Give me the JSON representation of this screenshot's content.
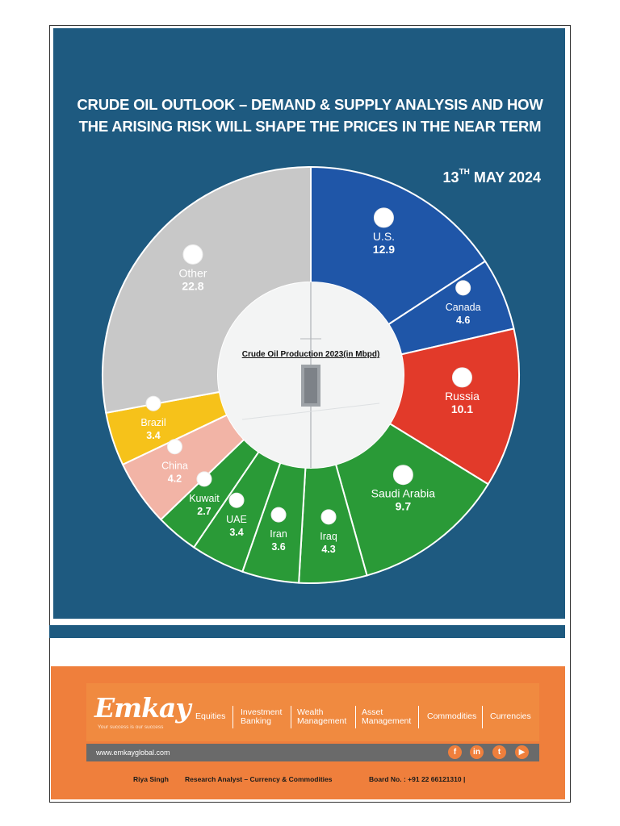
{
  "cover": {
    "title": "CRUDE OIL OUTLOOK – DEMAND & SUPPLY ANALYSIS AND HOW THE ARISING RISK WILL SHAPE THE PRICES IN THE NEAR TERM",
    "date_day": "13",
    "date_suffix": "TH",
    "date_rest": " MAY 2024"
  },
  "chart_data": {
    "type": "pie",
    "variant": "donut",
    "title": "Crude Oil Production 2023(in Mbpd)",
    "slices": [
      {
        "label": "U.S.",
        "value": 12.9,
        "color": "#1f56a8",
        "flag": "us-flag-icon"
      },
      {
        "label": "Canada",
        "value": 4.6,
        "color": "#1f56a8",
        "flag": "canada-flag-icon"
      },
      {
        "label": "Russia",
        "value": 10.1,
        "color": "#e23a2a",
        "flag": "russia-flag-icon"
      },
      {
        "label": "Saudi Arabia",
        "value": 9.7,
        "color": "#2a9a37",
        "flag": "saudi-flag-icon"
      },
      {
        "label": "Iraq",
        "value": 4.3,
        "color": "#2a9a37",
        "flag": "iraq-flag-icon"
      },
      {
        "label": "Iran",
        "value": 3.6,
        "color": "#2a9a37",
        "flag": "iran-flag-icon"
      },
      {
        "label": "UAE",
        "value": 3.4,
        "color": "#2a9a37",
        "flag": "uae-flag-icon"
      },
      {
        "label": "Kuwait",
        "value": 2.7,
        "color": "#2a9a37",
        "flag": "kuwait-flag-icon"
      },
      {
        "label": "China",
        "value": 4.2,
        "color": "#f2b4a6",
        "flag": "china-flag-icon"
      },
      {
        "label": "Brazil",
        "value": 3.4,
        "color": "#f6c21a",
        "flag": "brazil-flag-icon"
      },
      {
        "label": "Other",
        "value": 22.8,
        "color": "#c8c8c8",
        "flag": "globe-icon"
      }
    ]
  },
  "footer": {
    "logo": "Emkay",
    "tagline": "Your success is our success",
    "services": [
      "Equities",
      "Investment Banking",
      "Wealth Management",
      "Asset Management",
      "Commodities",
      "Currencies"
    ],
    "website": "www.emkayglobal.com",
    "social": [
      "facebook-icon",
      "linkedin-icon",
      "twitter-icon",
      "youtube-icon"
    ],
    "analyst_name": "Riya Singh",
    "analyst_role": "Research Analyst – Currency & Commodities",
    "board_no": "Board No. : +91 22 66121310 |"
  }
}
